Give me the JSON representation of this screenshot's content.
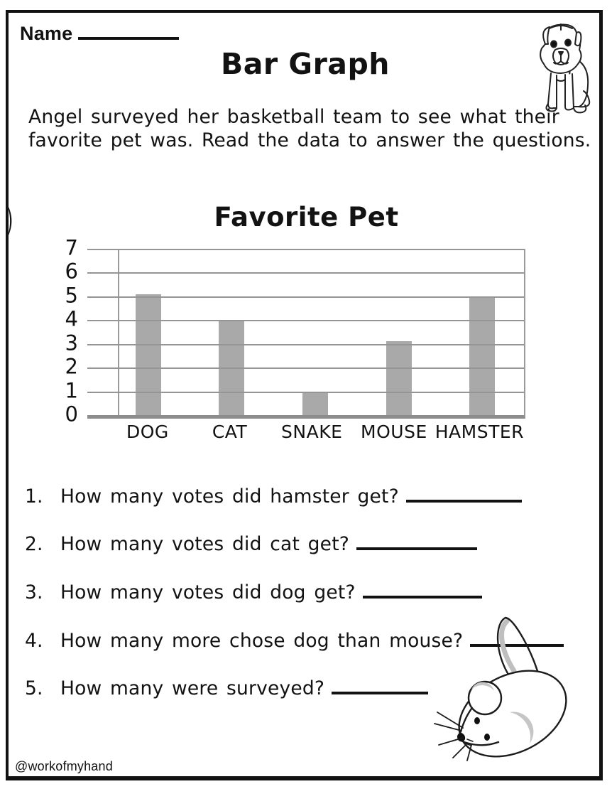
{
  "header": {
    "name_label": "Name",
    "title": "Bar Graph",
    "intro_lines": [
      "Angel surveyed her basketball team to see what their",
      "favorite pet was. Read the data to answer the questions."
    ]
  },
  "chart_data": {
    "type": "bar",
    "title": "Favorite Pet",
    "categories": [
      "DOG",
      "CAT",
      "SNAKE",
      "MOUSE",
      "HAMSTER"
    ],
    "values": [
      5.1,
      4,
      1,
      3.1,
      5
    ],
    "xlabel": "",
    "ylabel": "",
    "ylim": [
      0,
      7
    ],
    "ytick_step": 1,
    "grid": true,
    "legend": false,
    "bar_color": "#a9a9a9",
    "gridline_color": "#959595"
  },
  "questions": [
    {
      "num": "1.",
      "text": "How many votes did hamster get?"
    },
    {
      "num": "2.",
      "text": "How many votes did cat get?"
    },
    {
      "num": "3.",
      "text": "How many votes did dog get?"
    },
    {
      "num": "4.",
      "text": "How many more chose dog than mouse?"
    },
    {
      "num": "5.",
      "text": "How many were surveyed?"
    }
  ],
  "footer": {
    "credit": "@workofmyhand"
  },
  "icons": {
    "dog": "puppy-line-art",
    "mouse": "mouse-line-art"
  }
}
